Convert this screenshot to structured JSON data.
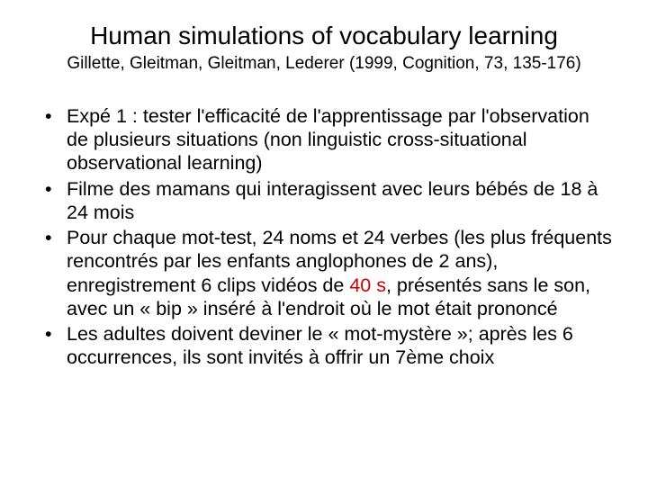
{
  "slide": {
    "title": "Human simulations of vocabulary learning",
    "subtitle": "Gillette, Gleitman, Gleitman, Lederer (1999, Cognition, 73, 135-176)",
    "title_fontsize": 28,
    "subtitle_fontsize": 19,
    "body_fontsize": 21.5,
    "background_color": "#ffffff",
    "text_color": "#000000",
    "highlight_color": "#cc0000",
    "bullets": [
      {
        "pre": "Expé 1 : tester l'efficacité de l'apprentissage par l'observation de plusieurs situations (non linguistic cross-situational observational learning)",
        "highlight": "",
        "post": ""
      },
      {
        "pre": "Filme des mamans qui interagissent avec leurs bébés de 18 à 24 mois",
        "highlight": "",
        "post": ""
      },
      {
        "pre": "Pour chaque mot-test, 24 noms et 24 verbes (les plus fréquents rencontrés par les enfants anglophones de 2 ans), enregistrement  6 clips vidéos de ",
        "highlight": "40 s",
        "post": ", présentés sans le son, avec un « bip » inséré à l'endroit où le mot était prononcé"
      },
      {
        "pre": "Les adultes doivent deviner le « mot-mystère »; après les 6 occurrences, ils sont invités à offrir un 7ème choix",
        "highlight": "",
        "post": ""
      }
    ]
  }
}
